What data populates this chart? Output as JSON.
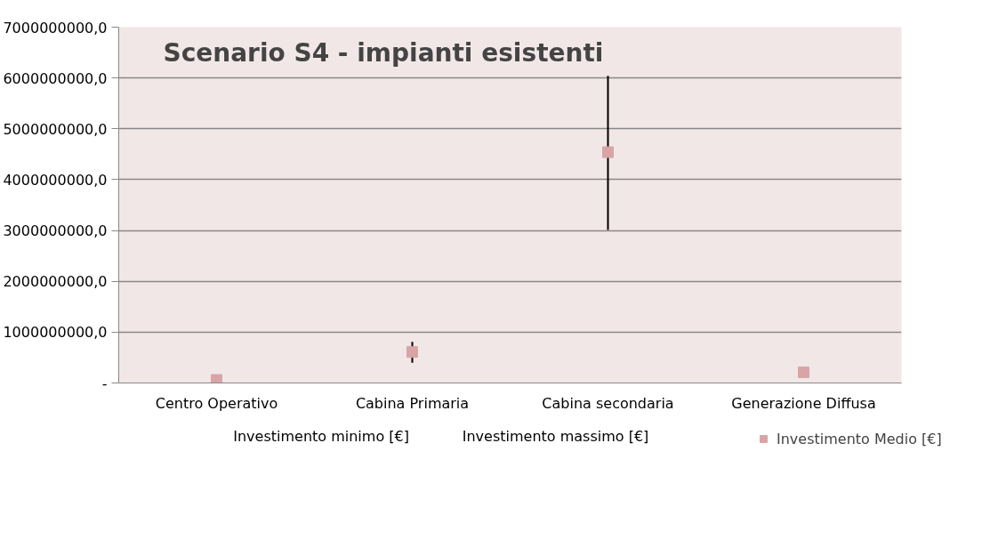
{
  "chart_data": {
    "type": "scatter",
    "title": "Scenario S4 - impianti esistenti",
    "categories": [
      "Centro Operativo",
      "Cabina Primaria",
      "Cabina secondaria",
      "Generazione Diffusa"
    ],
    "series": [
      {
        "name": "Investimento Medio [€]",
        "color": "#d9a4a6",
        "marker": "square",
        "values": [
          60000000,
          610000000,
          4540000000,
          210000000
        ],
        "errors": [
          null,
          [
            400000000,
            810000000
          ],
          [
            3010000000,
            6040000000
          ],
          null
        ]
      }
    ],
    "annotations": [
      "Investimento minimo [€]",
      "Investimento massimo [€]"
    ],
    "ylim": [
      0,
      7000000000
    ],
    "yticks": [
      {
        "value": 0,
        "label": "-"
      },
      {
        "value": 1000000000,
        "label": "1000000000,0"
      },
      {
        "value": 2000000000,
        "label": "2000000000,0"
      },
      {
        "value": 3000000000,
        "label": "3000000000,0"
      },
      {
        "value": 4000000000,
        "label": "4000000000,0"
      },
      {
        "value": 5000000000,
        "label": "5000000000,0"
      },
      {
        "value": 6000000000,
        "label": "6000000000,0"
      },
      {
        "value": 7000000000,
        "label": "7000000000,0"
      }
    ],
    "grid": "y",
    "legend": "bottom"
  }
}
